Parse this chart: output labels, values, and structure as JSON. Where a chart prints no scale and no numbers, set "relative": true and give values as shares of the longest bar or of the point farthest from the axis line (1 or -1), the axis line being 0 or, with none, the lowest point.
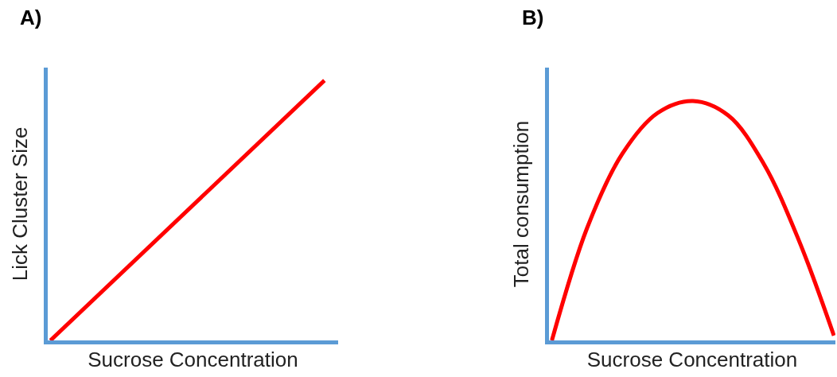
{
  "chart_data": [
    {
      "type": "line",
      "title": "A)",
      "xlabel": "Sucrose Concentration",
      "ylabel": "Lick Cluster Size",
      "relative": true,
      "tick_labels": false,
      "marker": "none",
      "line_style": "solid",
      "categories": [
        null,
        null
      ],
      "series": [
        {
          "color": "#ff0000",
          "values": [
            0,
            1
          ]
        }
      ]
    },
    {
      "type": "line",
      "title": "B)",
      "xlabel": "Sucrose Concentration",
      "ylabel": "Total consumption",
      "relative": true,
      "tick_labels": false,
      "marker": "none",
      "line_style": "solid",
      "categories": [
        null,
        null,
        null,
        null,
        null,
        null,
        null,
        null,
        null
      ],
      "series": [
        {
          "color": "#ff0000",
          "values": [
            0,
            0.47,
            0.78,
            0.95,
            1,
            0.94,
            0.74,
            0.42,
            0.02
          ]
        }
      ]
    }
  ]
}
